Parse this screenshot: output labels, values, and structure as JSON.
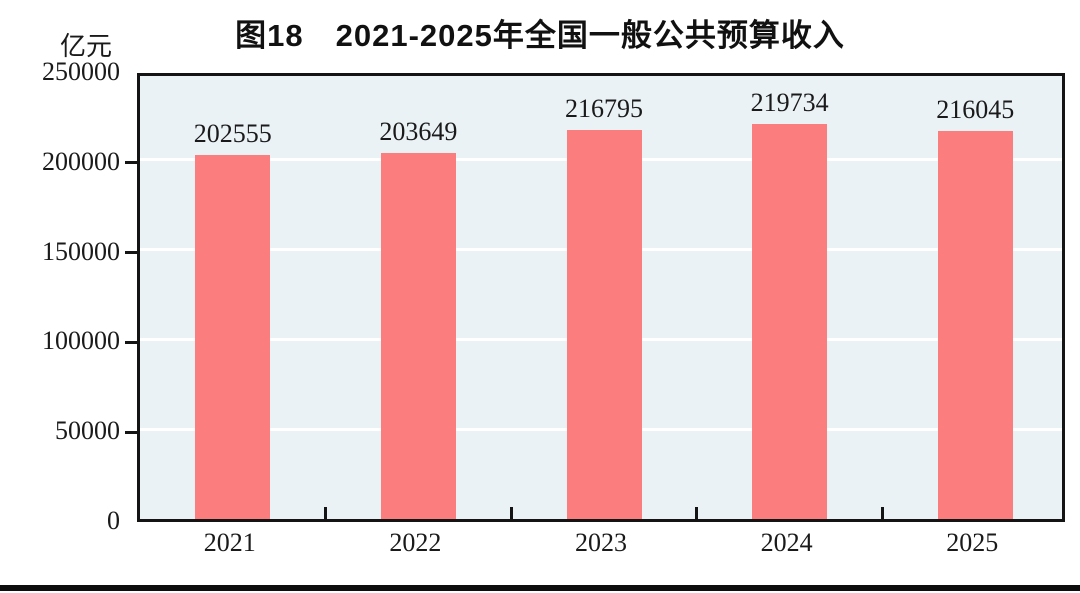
{
  "figure": {
    "number_label": "图18",
    "title": "图18　2021-2025年全国一般公共预算收入",
    "unit_label": "亿元"
  },
  "chart_data": {
    "type": "bar",
    "title": "图18　2021-2025年全国一般公共预算收入",
    "unit": "亿元",
    "xlabel": "",
    "ylabel": "亿元",
    "categories": [
      "2021",
      "2022",
      "2023",
      "2024",
      "2025"
    ],
    "values": [
      202555,
      203649,
      216795,
      219734,
      216045
    ],
    "ylim": [
      0,
      250000
    ],
    "ytick_step": 50000,
    "yticks": [
      0,
      50000,
      100000,
      150000,
      200000,
      250000
    ],
    "grid": "horizontal",
    "legend_position": "none",
    "value_labels_shown": true,
    "colors": {
      "bar_fill": "#FC7D7D",
      "plot_background": "#EAF2F6",
      "gridline": "#FFFFFF",
      "axis_border": "#141414",
      "text": "#1A1A1A"
    }
  }
}
